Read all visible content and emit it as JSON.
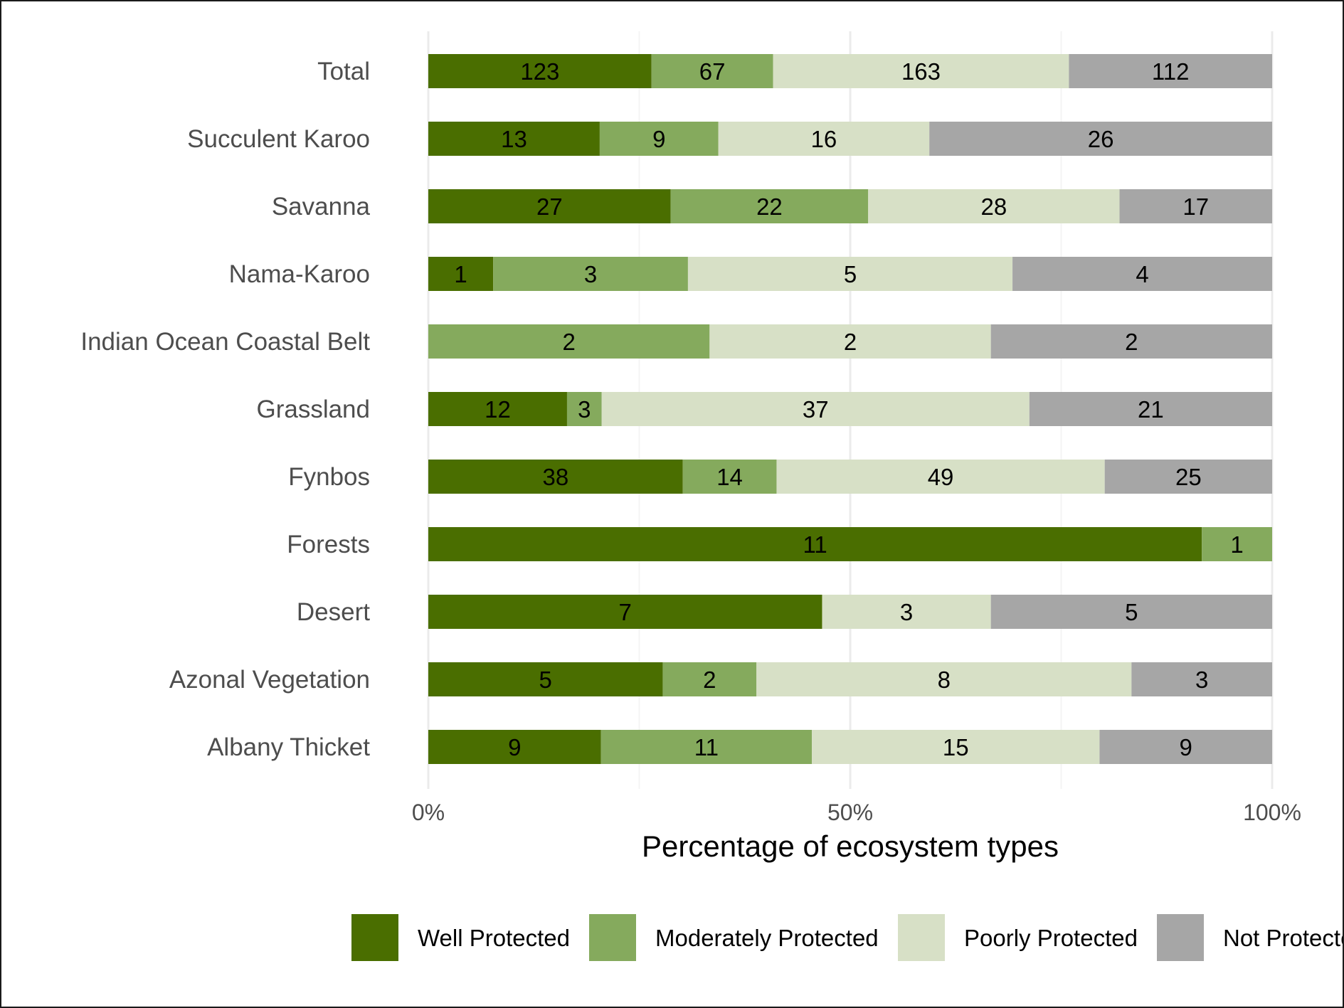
{
  "chart_data": {
    "type": "bar",
    "orientation": "horizontal",
    "stacked": "percent",
    "xlabel": "Percentage of ecosystem types",
    "ylabel": "",
    "xlim": [
      0,
      100
    ],
    "xticks": [
      "0%",
      "50%",
      "100%"
    ],
    "grid": true,
    "legend_position": "bottom",
    "categories": [
      "Total",
      "Succulent Karoo",
      "Savanna",
      "Nama-Karoo",
      "Indian Ocean Coastal Belt",
      "Grassland",
      "Fynbos",
      "Forests",
      "Desert",
      "Azonal Vegetation",
      "Albany Thicket"
    ],
    "series": [
      {
        "name": "Well Protected",
        "color": "#4a6e00",
        "values": [
          123,
          13,
          27,
          1,
          0,
          12,
          38,
          11,
          7,
          5,
          9
        ]
      },
      {
        "name": "Moderately Protected",
        "color": "#85aa5d",
        "values": [
          67,
          9,
          22,
          3,
          2,
          3,
          14,
          1,
          0,
          2,
          11
        ]
      },
      {
        "name": "Poorly Protected",
        "color": "#d7e0c6",
        "values": [
          163,
          16,
          28,
          5,
          2,
          37,
          49,
          0,
          3,
          8,
          15
        ]
      },
      {
        "name": "Not Protected",
        "color": "#a6a6a6",
        "values": [
          112,
          26,
          17,
          4,
          2,
          21,
          25,
          0,
          5,
          3,
          9
        ]
      }
    ],
    "legend_display": [
      "Well Protected",
      "Moderately Protected",
      "Poorly Protected",
      "Not Protecte"
    ]
  }
}
